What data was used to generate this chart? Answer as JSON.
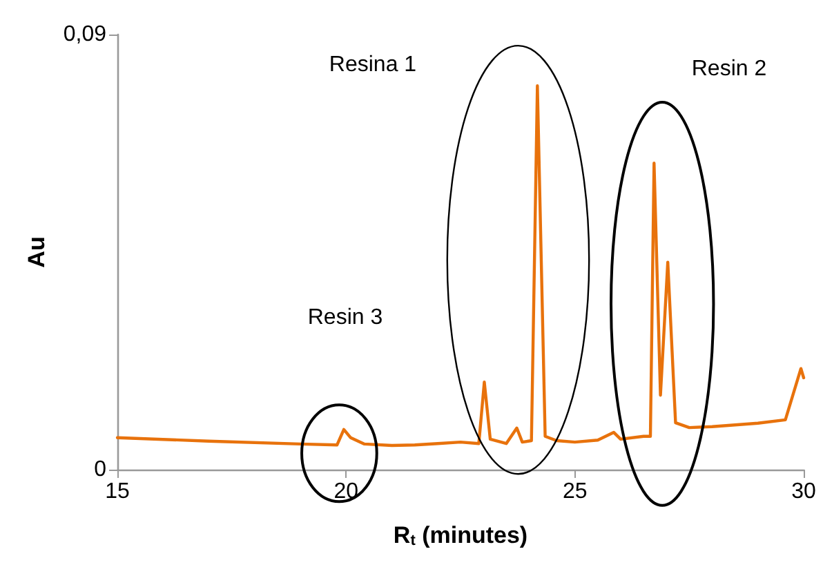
{
  "chart_data": {
    "type": "line",
    "xlabel": "R$_{t}$ (minutes)",
    "ylabel": "Au",
    "xlim": [
      15,
      30
    ],
    "xticks": [
      15,
      20,
      25,
      30
    ],
    "ylim": [
      0,
      0.09
    ],
    "yticks": [
      {
        "value": 0,
        "label": "0"
      },
      {
        "value": 0.09,
        "label": "0,09"
      }
    ],
    "grid": false,
    "marker": "none",
    "line_style": "solid",
    "series": [
      {
        "color": "#e8720c",
        "x": [
          15,
          17,
          19,
          19.8,
          19.95,
          20.1,
          20.4,
          21,
          21.5,
          22,
          22.5,
          22.9,
          23.02,
          23.15,
          23.5,
          23.73,
          23.85,
          24.05,
          24.18,
          24.35,
          24.6,
          25,
          25.5,
          25.85,
          26,
          26.5,
          26.65,
          26.73,
          26.87,
          27.03,
          27.2,
          27.5,
          28,
          29,
          29.6,
          29.94,
          30
        ],
        "values": [
          0.0066,
          0.0059,
          0.0053,
          0.0051,
          0.0083,
          0.0066,
          0.0053,
          0.005,
          0.0051,
          0.0054,
          0.0057,
          0.0054,
          0.0181,
          0.0063,
          0.0054,
          0.0086,
          0.0057,
          0.006,
          0.0794,
          0.0069,
          0.006,
          0.0057,
          0.0061,
          0.0077,
          0.0063,
          0.0069,
          0.0069,
          0.0634,
          0.0154,
          0.0429,
          0.0097,
          0.0087,
          0.0089,
          0.0096,
          0.0103,
          0.0209,
          0.019
        ]
      }
    ],
    "annotations": [
      "Resina 1",
      "Resin 2",
      "Resin 3"
    ]
  }
}
